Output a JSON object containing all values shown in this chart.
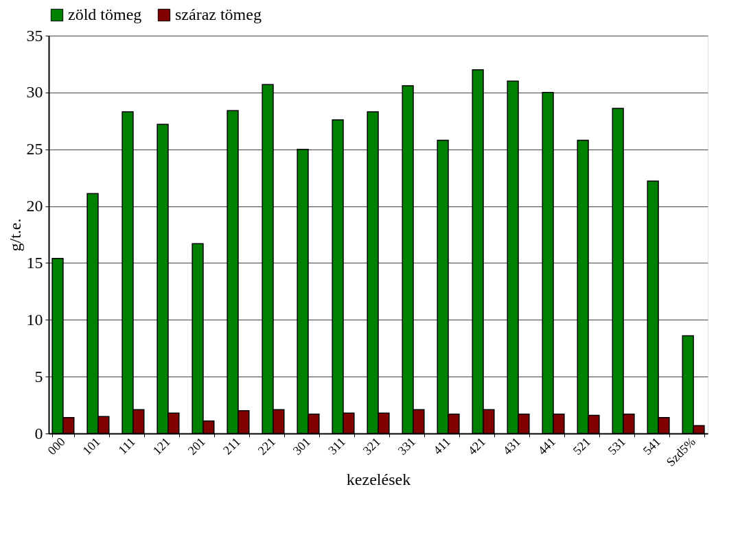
{
  "chart_data": {
    "type": "bar",
    "xlabel": "kezelések",
    "ylabel": "g/t.e.",
    "categories": [
      "000",
      "101",
      "111",
      "121",
      "201",
      "211",
      "221",
      "301",
      "311",
      "321",
      "331",
      "411",
      "421",
      "431",
      "441",
      "521",
      "531",
      "541",
      "Szd5%"
    ],
    "series": [
      {
        "name": "zöld tömeg",
        "color": "#008000",
        "values": [
          15.4,
          21.1,
          28.3,
          27.2,
          16.7,
          28.4,
          30.7,
          25.0,
          27.6,
          28.3,
          30.6,
          25.8,
          32.0,
          31.0,
          30.0,
          25.8,
          28.6,
          22.2,
          8.6
        ]
      },
      {
        "name": "száraz tömeg",
        "color": "#800000",
        "values": [
          1.4,
          1.5,
          2.1,
          1.8,
          1.1,
          2.0,
          2.1,
          1.7,
          1.8,
          1.8,
          2.1,
          1.7,
          2.1,
          1.7,
          1.7,
          1.6,
          1.7,
          1.4,
          0.7
        ]
      }
    ],
    "ylim": [
      0,
      35
    ],
    "yticks": [
      0,
      5,
      10,
      15,
      20,
      25,
      30,
      35
    ],
    "grid": "y",
    "legend": "top"
  }
}
